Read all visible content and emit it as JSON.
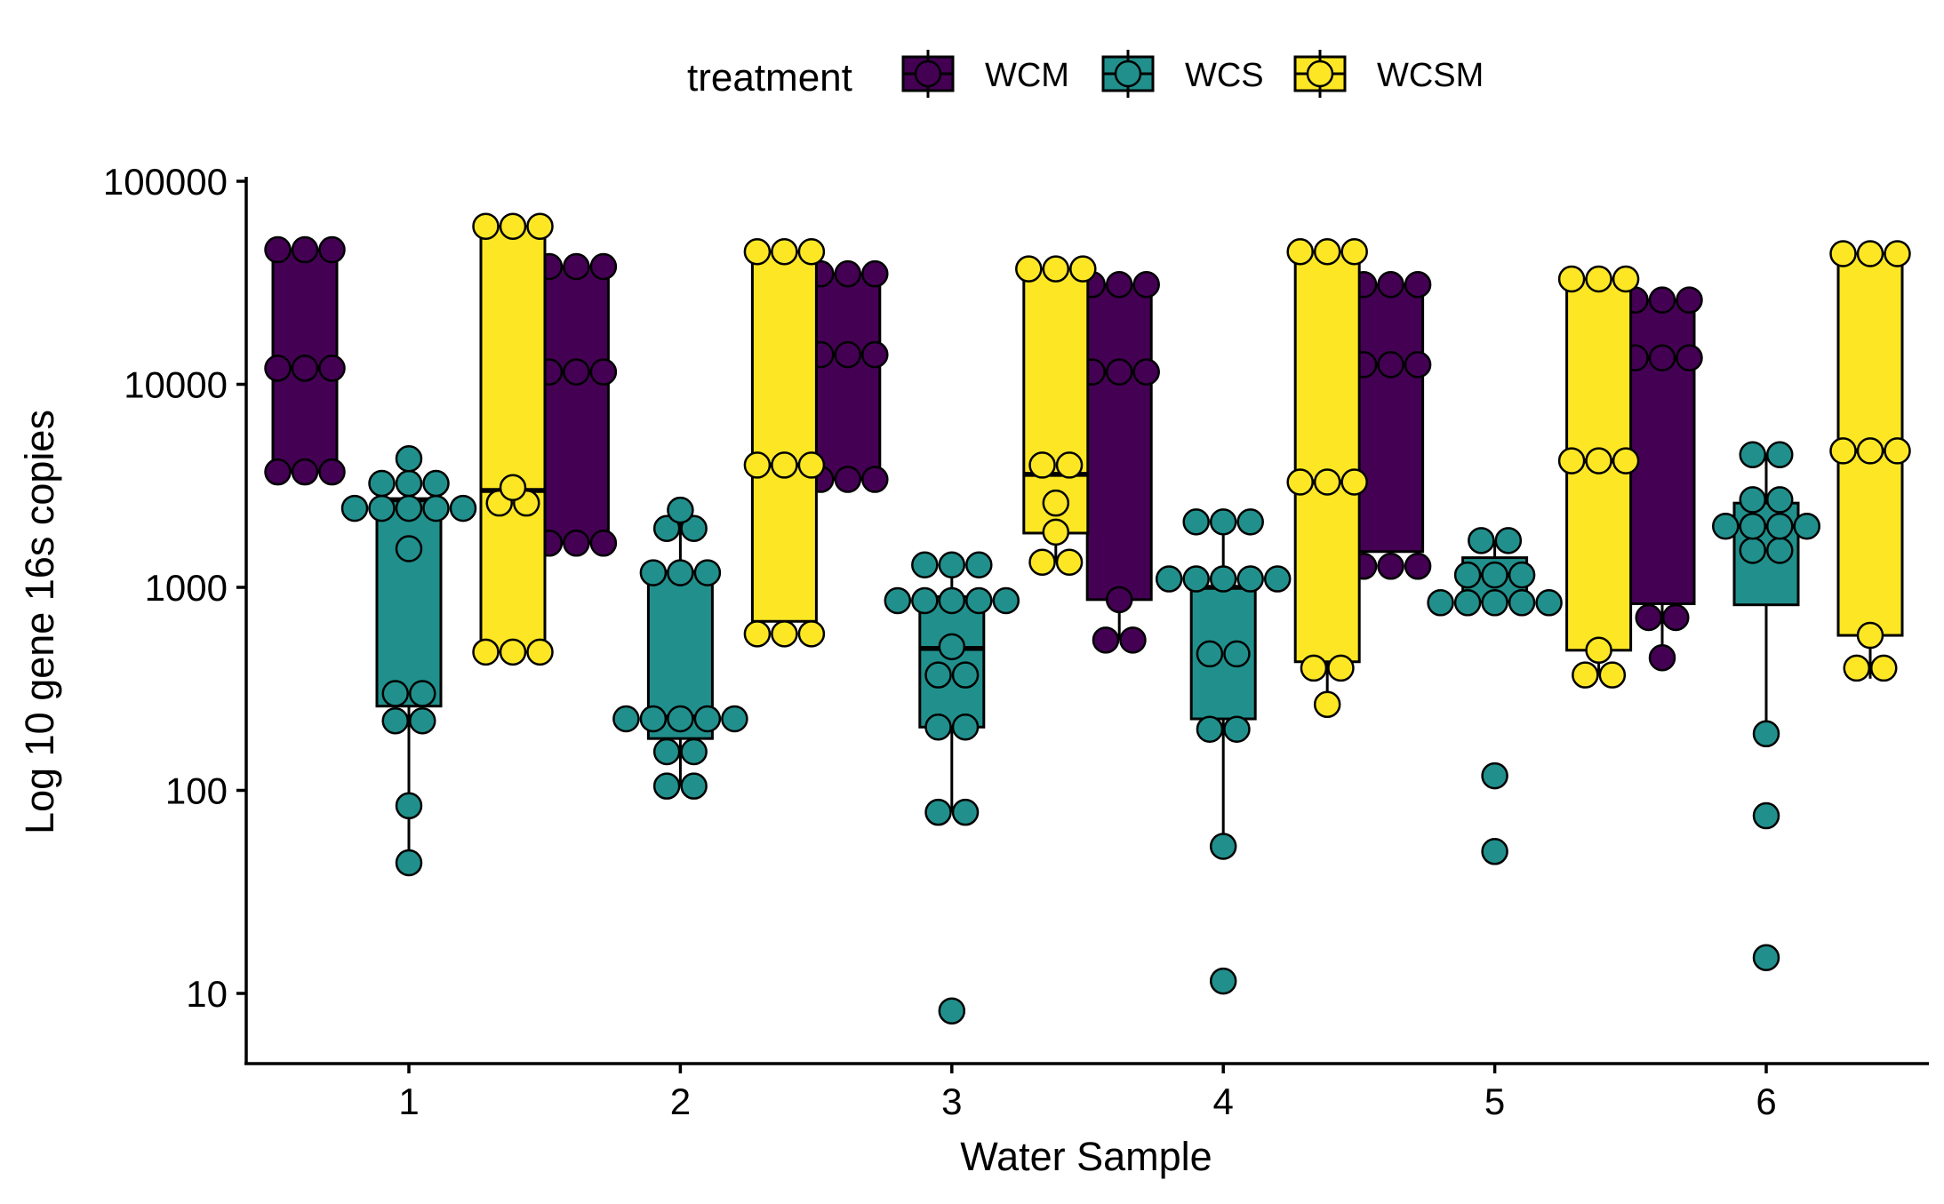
{
  "chart_data": {
    "type": "box",
    "title": "",
    "xlabel": "Water Sample",
    "ylabel": "Log 10 gene 16s copies",
    "y_scale": "log10",
    "ylim": [
      4.6,
      100000
    ],
    "y_ticks": [
      10,
      100,
      1000,
      10000,
      100000
    ],
    "y_tick_labels": [
      "10",
      "100",
      "1000",
      "10000",
      "100000"
    ],
    "categories": [
      "1",
      "2",
      "3",
      "4",
      "5",
      "6"
    ],
    "grid": false,
    "legend": {
      "title": "treatment",
      "position": "top",
      "entries": [
        "WCM",
        "WCS",
        "WCSM"
      ]
    },
    "series": [
      {
        "name": "WCM",
        "color": "#440154",
        "boxes": [
          {
            "q1": 3700,
            "median": 12000,
            "q3": 46000,
            "whisker_low": 3700,
            "whisker_high": 46000
          },
          {
            "q1": 1650,
            "median": 11500,
            "q3": 38000,
            "whisker_low": 1650,
            "whisker_high": 38000
          },
          {
            "q1": 3400,
            "median": 14000,
            "q3": 35000,
            "whisker_low": 3400,
            "whisker_high": 35000
          },
          {
            "q1": 870,
            "median": 11500,
            "q3": 31000,
            "whisker_low": 550,
            "whisker_high": 31000
          },
          {
            "q1": 1500,
            "median": 12500,
            "q3": 31000,
            "whisker_low": 1270,
            "whisker_high": 31000
          },
          {
            "q1": 830,
            "median": 13500,
            "q3": 26000,
            "whisker_low": 450,
            "whisker_high": 26000
          }
        ],
        "points": [
          [
            3700,
            3700,
            3700,
            12000,
            12000,
            12000,
            46000,
            46000,
            46000
          ],
          [
            1650,
            1650,
            1650,
            11500,
            11500,
            11500,
            38000,
            38000,
            38000
          ],
          [
            3400,
            3400,
            3400,
            14000,
            14000,
            14000,
            35000,
            35000,
            35000
          ],
          [
            550,
            550,
            870,
            11500,
            11500,
            11500,
            31000,
            31000,
            31000
          ],
          [
            1270,
            1270,
            1270,
            12500,
            12500,
            12500,
            31000,
            31000,
            31000
          ],
          [
            450,
            710,
            710,
            13500,
            13500,
            13500,
            26000,
            26000,
            26000
          ]
        ]
      },
      {
        "name": "WCS",
        "color": "#21908C",
        "boxes": [
          {
            "q1": 260,
            "median": 2700,
            "q3": 2700,
            "whisker_low": 44,
            "whisker_high": 4300
          },
          {
            "q1": 180,
            "median": 230,
            "q3": 1200,
            "whisker_low": 105,
            "whisker_high": 2400
          },
          {
            "q1": 205,
            "median": 500,
            "q3": 900,
            "whisker_low": 78,
            "whisker_high": 1300
          },
          {
            "q1": 225,
            "median": 1000,
            "q3": 1000,
            "whisker_low": 53,
            "whisker_high": 2100
          },
          {
            "q1": 850,
            "median": 1150,
            "q3": 1400,
            "whisker_low": 850,
            "whisker_high": 1700
          },
          {
            "q1": 820,
            "median": 2000,
            "q3": 2600,
            "whisker_low": 190,
            "whisker_high": 4500
          }
        ],
        "points": [
          [
            44,
            84,
            220,
            220,
            300,
            300,
            1550,
            2450,
            2450,
            2450,
            2450,
            2450,
            3250,
            3250,
            3250,
            4300
          ],
          [
            105,
            105,
            155,
            155,
            225,
            225,
            225,
            225,
            225,
            1180,
            1180,
            1180,
            1950,
            1950,
            2400
          ],
          [
            8.2,
            78,
            78,
            205,
            205,
            370,
            370,
            510,
            860,
            860,
            860,
            860,
            860,
            1290,
            1290,
            1290
          ],
          [
            11.5,
            53,
            200,
            200,
            470,
            470,
            1100,
            1100,
            1100,
            1100,
            1100,
            2100,
            2100,
            2100
          ],
          [
            50,
            118,
            840,
            840,
            840,
            840,
            840,
            1150,
            1150,
            1150,
            1700,
            1700
          ],
          [
            15,
            75,
            190,
            1520,
            1520,
            2000,
            2000,
            2000,
            2000,
            2700,
            2700,
            4500,
            4500
          ]
        ]
      },
      {
        "name": "WCSM",
        "color": "#FDE725",
        "boxes": [
          {
            "q1": 480,
            "median": 3000,
            "q3": 60000,
            "whisker_low": 480,
            "whisker_high": 60000
          },
          {
            "q1": 680,
            "median": 4000,
            "q3": 45000,
            "whisker_low": 590,
            "whisker_high": 45000
          },
          {
            "q1": 1850,
            "median": 3600,
            "q3": 37000,
            "whisker_low": 1330,
            "whisker_high": 37000
          },
          {
            "q1": 430,
            "median": 3300,
            "q3": 45000,
            "whisker_low": 265,
            "whisker_high": 45000
          },
          {
            "q1": 490,
            "median": 4200,
            "q3": 33000,
            "whisker_low": 370,
            "whisker_high": 33000
          },
          {
            "q1": 580,
            "median": 4700,
            "q3": 44000,
            "whisker_low": 355,
            "whisker_high": 44000
          }
        ],
        "points": [
          [
            480,
            480,
            480,
            2600,
            2600,
            3100,
            60000,
            60000,
            60000
          ],
          [
            590,
            590,
            590,
            4000,
            4000,
            4000,
            45000,
            45000,
            45000
          ],
          [
            1330,
            1330,
            1870,
            2600,
            4000,
            4000,
            37000,
            37000,
            37000
          ],
          [
            265,
            400,
            400,
            3300,
            3300,
            3300,
            45000,
            45000,
            45000
          ],
          [
            370,
            370,
            490,
            4200,
            4200,
            4200,
            33000,
            33000,
            33000
          ],
          [
            400,
            400,
            580,
            4700,
            4700,
            4700,
            44000,
            44000,
            44000
          ]
        ]
      }
    ]
  }
}
